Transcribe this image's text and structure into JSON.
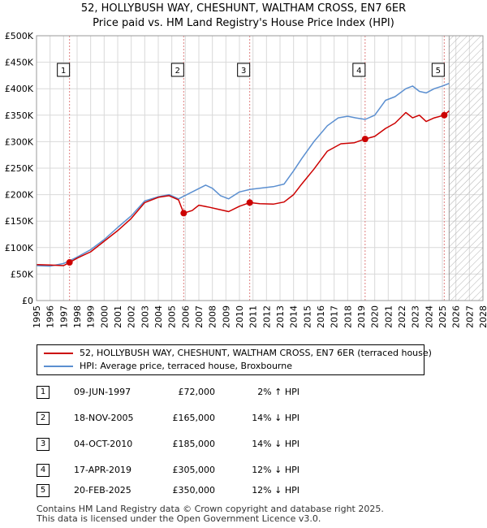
{
  "title": "52, HOLLYBUSH WAY, CHESHUNT, WALTHAM CROSS, EN7 6ER",
  "subtitle": "Price paid vs. HM Land Registry's House Price Index (HPI)",
  "colors": {
    "property": "#cc0000",
    "hpi": "#5b8fd0",
    "grid": "#d9d9d9",
    "marker_line": "#e08080",
    "hatch": "#aaaaaa"
  },
  "chart_data": {
    "type": "line",
    "title": "52, HOLLYBUSH WAY, CHESHUNT, WALTHAM CROSS, EN7 6ER",
    "subtitle": "Price paid vs. HM Land Registry's House Price Index (HPI)",
    "xlabel": "",
    "ylabel": "",
    "xlim": [
      1995,
      2028
    ],
    "ylim": [
      0,
      500000
    ],
    "x_ticks": [
      1995,
      1996,
      1997,
      1998,
      1999,
      2000,
      2001,
      2002,
      2003,
      2004,
      2005,
      2006,
      2007,
      2008,
      2009,
      2010,
      2011,
      2012,
      2013,
      2014,
      2015,
      2016,
      2017,
      2018,
      2019,
      2020,
      2021,
      2022,
      2023,
      2024,
      2025,
      2026,
      2027,
      2028
    ],
    "y_ticks": [
      {
        "value": 0,
        "label": "£0"
      },
      {
        "value": 50000,
        "label": "£50K"
      },
      {
        "value": 100000,
        "label": "£100K"
      },
      {
        "value": 150000,
        "label": "£150K"
      },
      {
        "value": 200000,
        "label": "£200K"
      },
      {
        "value": 250000,
        "label": "£250K"
      },
      {
        "value": 300000,
        "label": "£300K"
      },
      {
        "value": 350000,
        "label": "£350K"
      },
      {
        "value": 400000,
        "label": "£400K"
      },
      {
        "value": 450000,
        "label": "£450K"
      },
      {
        "value": 500000,
        "label": "£500K"
      }
    ],
    "forecast_from": 2025.5,
    "grid": true,
    "series": [
      {
        "name": "52, HOLLYBUSH WAY, CHESHUNT, WALTHAM CROSS, EN7 6ER (terraced house)",
        "color": "#cc0000",
        "x": [
          1995,
          1996,
          1997,
          1997.44,
          1998,
          1999,
          2000,
          2001,
          2002,
          2003,
          2004,
          2004.8,
          2005.5,
          2005.88,
          2006.5,
          2007,
          2007.8,
          2008.5,
          2009.2,
          2010,
          2010.76,
          2011.5,
          2012.5,
          2013.3,
          2014,
          2014.6,
          2015.5,
          2016.5,
          2017.5,
          2018.5,
          2019.29,
          2020,
          2020.8,
          2021.5,
          2022.3,
          2022.8,
          2023.3,
          2023.8,
          2024.4,
          2025.14,
          2025.5
        ],
        "y": [
          68000,
          67000,
          66000,
          72000,
          80000,
          92000,
          112000,
          132000,
          155000,
          185000,
          195000,
          198000,
          190000,
          165000,
          170000,
          180000,
          176000,
          172000,
          168000,
          178000,
          185000,
          183000,
          182000,
          186000,
          200000,
          220000,
          248000,
          282000,
          296000,
          298000,
          305000,
          310000,
          325000,
          335000,
          355000,
          345000,
          350000,
          338000,
          345000,
          350000,
          358000
        ]
      },
      {
        "name": "HPI: Average price, terraced house, Broxbourne",
        "color": "#5b8fd0",
        "x": [
          1995,
          1996,
          1997,
          1998,
          1999,
          2000,
          2001,
          2002,
          2003,
          2004,
          2004.8,
          2005.5,
          2006.5,
          2007.5,
          2008,
          2008.6,
          2009.2,
          2010,
          2010.8,
          2011.5,
          2012.5,
          2013.3,
          2014,
          2014.6,
          2015.5,
          2016.5,
          2017.3,
          2018,
          2018.6,
          2019.3,
          2020,
          2020.8,
          2021.5,
          2022.3,
          2022.8,
          2023.3,
          2023.8,
          2024.4,
          2025,
          2025.5
        ],
        "y": [
          66000,
          65000,
          70000,
          82000,
          96000,
          115000,
          138000,
          160000,
          188000,
          196000,
          200000,
          192000,
          205000,
          218000,
          212000,
          198000,
          192000,
          205000,
          210000,
          212000,
          215000,
          220000,
          245000,
          268000,
          300000,
          330000,
          345000,
          348000,
          345000,
          342000,
          350000,
          378000,
          385000,
          400000,
          405000,
          395000,
          392000,
          400000,
          405000,
          410000
        ]
      }
    ],
    "sales": [
      {
        "label": "1",
        "date": "09-JUN-1997",
        "x": 1997.44,
        "price": 72000,
        "price_label": "£72,000",
        "hpi": "2% ↑ HPI"
      },
      {
        "label": "2",
        "date": "18-NOV-2005",
        "x": 2005.88,
        "price": 165000,
        "price_label": "£165,000",
        "hpi": "14% ↓ HPI"
      },
      {
        "label": "3",
        "date": "04-OCT-2010",
        "x": 2010.76,
        "price": 185000,
        "price_label": "£185,000",
        "hpi": "14% ↓ HPI"
      },
      {
        "label": "4",
        "date": "17-APR-2019",
        "x": 2019.29,
        "price": 305000,
        "price_label": "£305,000",
        "hpi": "12% ↓ HPI"
      },
      {
        "label": "5",
        "date": "20-FEB-2025",
        "x": 2025.14,
        "price": 350000,
        "price_label": "£350,000",
        "hpi": "12% ↓ HPI"
      }
    ]
  },
  "legend": {
    "property_label": "52, HOLLYBUSH WAY, CHESHUNT, WALTHAM CROSS, EN7 6ER (terraced house)",
    "hpi_label": "HPI: Average price, terraced house, Broxbourne"
  },
  "footer": {
    "line1": "Contains HM Land Registry data © Crown copyright and database right 2025.",
    "line2": "This data is licensed under the Open Government Licence v3.0."
  }
}
